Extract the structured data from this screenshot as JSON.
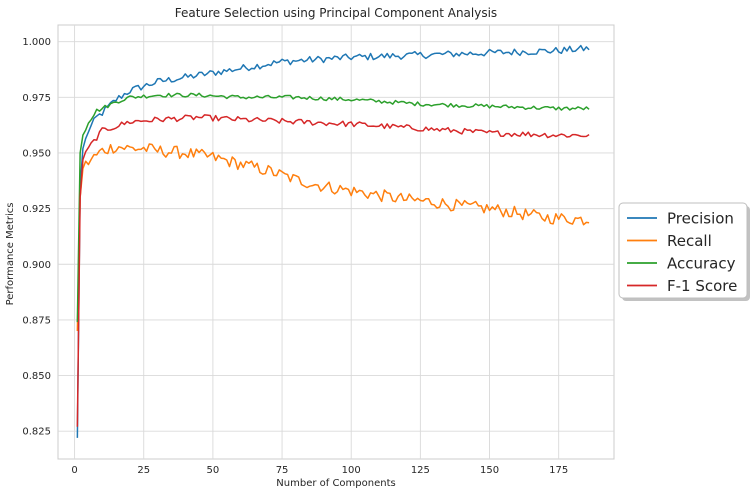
{
  "chart_data": {
    "type": "line",
    "title": "Feature Selection using Principal Component Analysis",
    "xlabel": "Number of Components",
    "ylabel": "Performance Metrics",
    "xlim": [
      -6,
      195
    ],
    "ylim": [
      0.8125,
      1.0075
    ],
    "xticks": [
      0,
      25,
      50,
      75,
      100,
      125,
      150,
      175
    ],
    "yticks": [
      0.825,
      0.85,
      0.875,
      0.9,
      0.925,
      0.95,
      0.975,
      1.0
    ],
    "ytick_labels": [
      "0.825",
      "0.850",
      "0.875",
      "0.900",
      "0.925",
      "0.950",
      "0.975",
      "1.000"
    ],
    "grid": true,
    "legend_position": "right",
    "x_range": [
      1,
      186
    ],
    "series": [
      {
        "name": "Precision",
        "color": "#1f77b4",
        "anchors": [
          [
            1,
            0.822
          ],
          [
            2,
            0.935
          ],
          [
            3,
            0.952
          ],
          [
            5,
            0.96
          ],
          [
            8,
            0.966
          ],
          [
            10,
            0.968
          ],
          [
            15,
            0.974
          ],
          [
            20,
            0.978
          ],
          [
            25,
            0.98
          ],
          [
            30,
            0.982
          ],
          [
            40,
            0.984
          ],
          [
            50,
            0.986
          ],
          [
            60,
            0.988
          ],
          [
            75,
            0.991
          ],
          [
            100,
            0.993
          ],
          [
            125,
            0.994
          ],
          [
            150,
            0.995
          ],
          [
            175,
            0.996
          ],
          [
            186,
            0.997
          ]
        ],
        "noise": 0.0016
      },
      {
        "name": "Recall",
        "color": "#ff7f0e",
        "anchors": [
          [
            1,
            0.87
          ],
          [
            2,
            0.93
          ],
          [
            3,
            0.943
          ],
          [
            5,
            0.946
          ],
          [
            10,
            0.951
          ],
          [
            15,
            0.953
          ],
          [
            20,
            0.952
          ],
          [
            25,
            0.952
          ],
          [
            30,
            0.951
          ],
          [
            40,
            0.95
          ],
          [
            50,
            0.948
          ],
          [
            60,
            0.945
          ],
          [
            70,
            0.942
          ],
          [
            80,
            0.938
          ],
          [
            90,
            0.935
          ],
          [
            100,
            0.933
          ],
          [
            110,
            0.931
          ],
          [
            120,
            0.929
          ],
          [
            130,
            0.928
          ],
          [
            140,
            0.926
          ],
          [
            150,
            0.925
          ],
          [
            160,
            0.923
          ],
          [
            170,
            0.921
          ],
          [
            186,
            0.92
          ]
        ],
        "noise": 0.0028
      },
      {
        "name": "Accuracy",
        "color": "#2ca02c",
        "anchors": [
          [
            1,
            0.874
          ],
          [
            2,
            0.95
          ],
          [
            3,
            0.958
          ],
          [
            5,
            0.964
          ],
          [
            8,
            0.969
          ],
          [
            10,
            0.97
          ],
          [
            15,
            0.973
          ],
          [
            20,
            0.975
          ],
          [
            30,
            0.976
          ],
          [
            45,
            0.976
          ],
          [
            60,
            0.975
          ],
          [
            80,
            0.975
          ],
          [
            100,
            0.974
          ],
          [
            125,
            0.972
          ],
          [
            150,
            0.971
          ],
          [
            175,
            0.97
          ],
          [
            186,
            0.97
          ]
        ],
        "noise": 0.0009
      },
      {
        "name": "F-1 Score",
        "color": "#d62728",
        "anchors": [
          [
            1,
            0.827
          ],
          [
            2,
            0.93
          ],
          [
            3,
            0.947
          ],
          [
            5,
            0.952
          ],
          [
            8,
            0.957
          ],
          [
            10,
            0.96
          ],
          [
            15,
            0.962
          ],
          [
            20,
            0.964
          ],
          [
            30,
            0.965
          ],
          [
            45,
            0.966
          ],
          [
            60,
            0.965
          ],
          [
            80,
            0.964
          ],
          [
            100,
            0.963
          ],
          [
            125,
            0.961
          ],
          [
            150,
            0.959
          ],
          [
            175,
            0.958
          ],
          [
            186,
            0.958
          ]
        ],
        "noise": 0.0013
      }
    ]
  }
}
